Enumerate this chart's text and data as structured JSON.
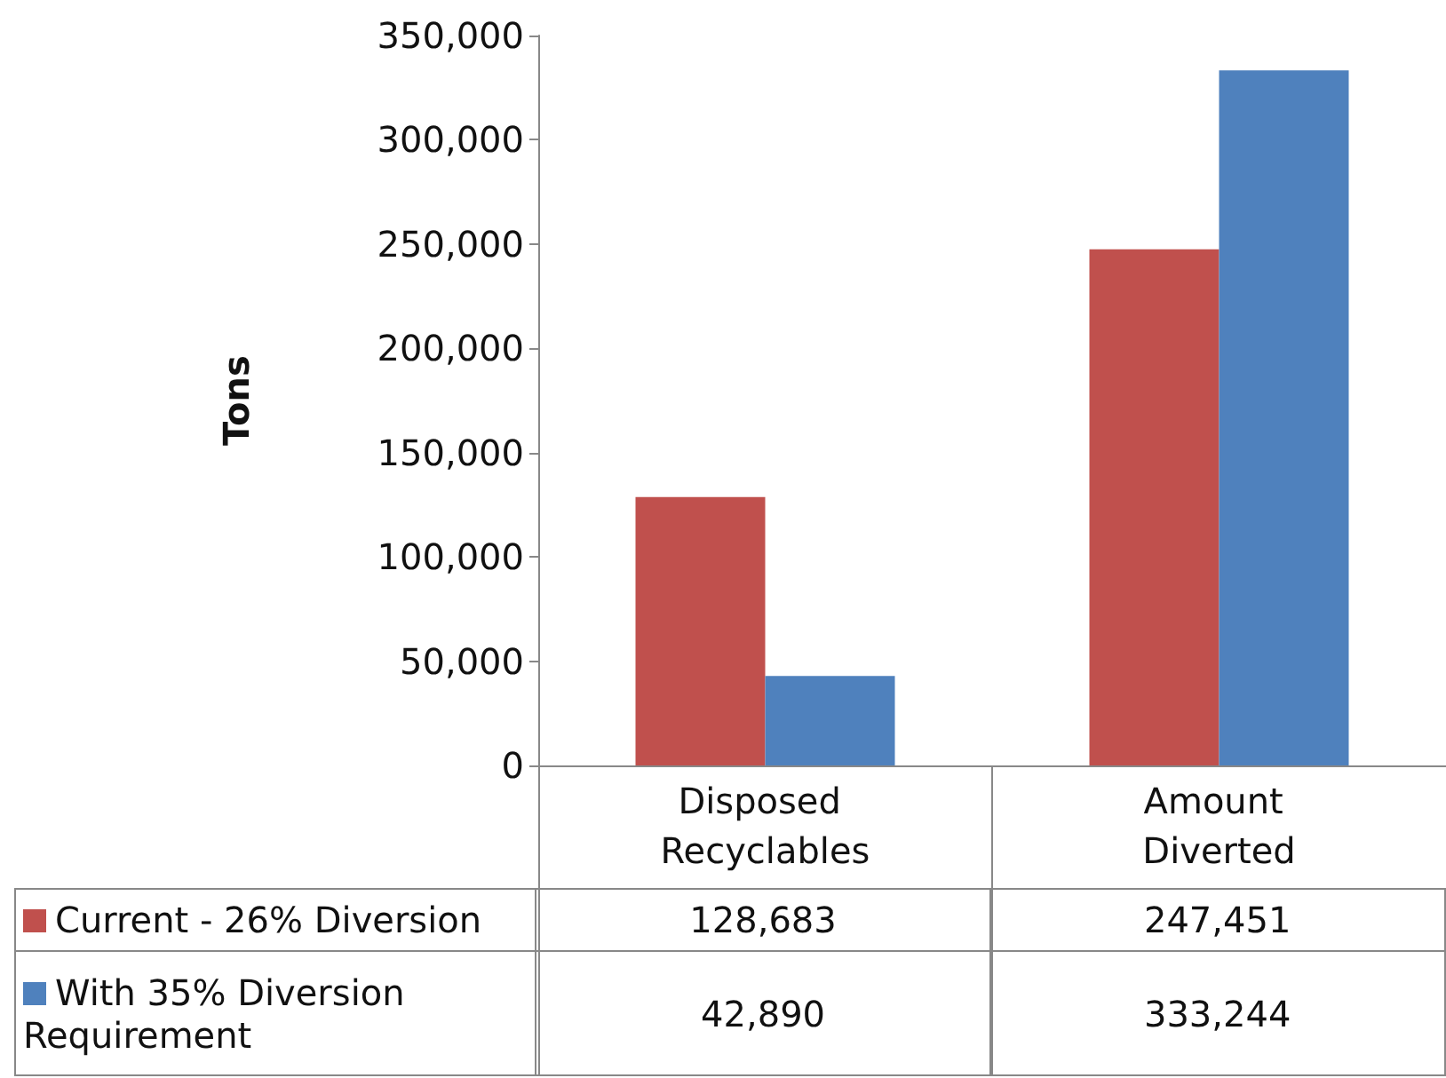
{
  "chart_data": {
    "type": "bar",
    "ylabel": "Tons",
    "categories": [
      "Disposed Recyclables",
      "Amount Diverted"
    ],
    "series": [
      {
        "name": "Current - 26% Diversion",
        "color": "#c0504d",
        "values": [
          128683,
          247451
        ],
        "value_labels": [
          "128,683",
          "247,451"
        ]
      },
      {
        "name": "With 35% Diversion Requirement",
        "color": "#4f81bd",
        "values": [
          42890,
          333244
        ],
        "value_labels": [
          "42,890",
          "333,244"
        ]
      }
    ],
    "ylim": [
      0,
      350000
    ],
    "yticks": [
      0,
      {
        "value": 50000,
        "label": "50,000"
      },
      {
        "value": 100000,
        "label": "100,000"
      },
      {
        "value": 150000,
        "label": "150,000"
      },
      {
        "value": 200000,
        "label": "200,000"
      },
      {
        "value": 250000,
        "label": "250,000"
      },
      {
        "value": 300000,
        "label": "300,000"
      },
      {
        "value": 350000,
        "label": "350,000"
      }
    ],
    "grid": false,
    "legend": "bottom left"
  }
}
